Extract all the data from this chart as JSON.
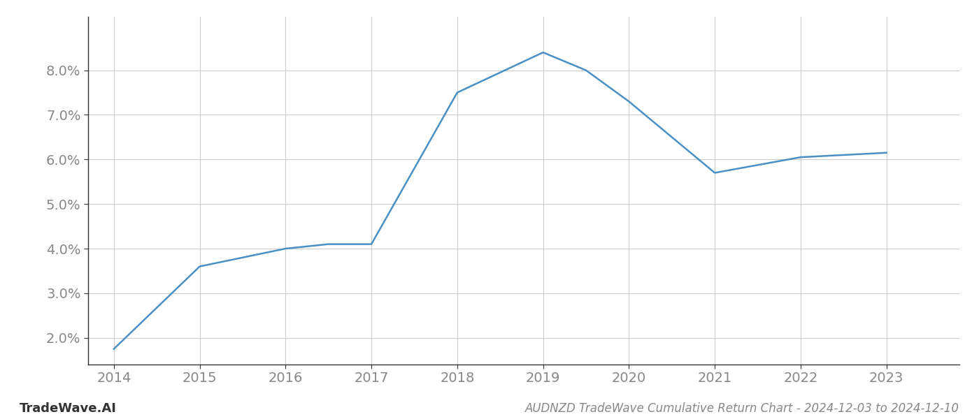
{
  "x": [
    2014,
    2015,
    2016,
    2016.5,
    2017,
    2018,
    2019,
    2019.5,
    2020,
    2021,
    2022,
    2023
  ],
  "y": [
    1.75,
    3.6,
    4.0,
    4.1,
    4.1,
    7.5,
    8.4,
    8.0,
    7.3,
    5.7,
    6.05,
    6.15
  ],
  "line_color": "#4a90c4",
  "line_width": 1.8,
  "title": "AUDNZD TradeWave Cumulative Return Chart - 2024-12-03 to 2024-12-10",
  "watermark": "TradeWave.AI",
  "xlim": [
    2013.7,
    2023.85
  ],
  "ylim": [
    1.4,
    9.2
  ],
  "yticks": [
    2.0,
    3.0,
    4.0,
    5.0,
    6.0,
    7.0,
    8.0
  ],
  "xticks": [
    2014,
    2015,
    2016,
    2017,
    2018,
    2019,
    2020,
    2021,
    2022,
    2023
  ],
  "background_color": "#ffffff",
  "grid_color": "#cccccc",
  "title_fontsize": 12,
  "watermark_fontsize": 13,
  "tick_fontsize": 14,
  "tick_color": "#888888",
  "spine_color": "#333333"
}
